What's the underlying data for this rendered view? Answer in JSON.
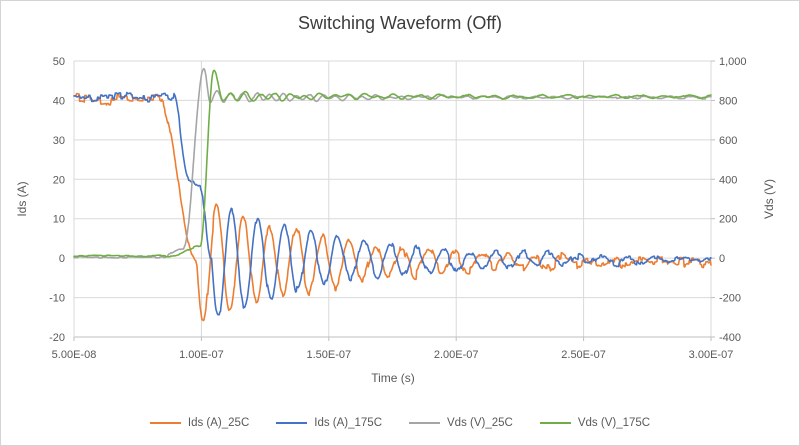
{
  "window": {
    "background": "#ffffff",
    "border_color": "#d4d4d4"
  },
  "chart_data": {
    "type": "line",
    "title": "Switching Waveform (Off)",
    "xlabel": "Time (s)",
    "ylabel_left": "Ids (A)",
    "ylabel_right": "Vds (V)",
    "grid": true,
    "legend_position": "bottom",
    "colors": {
      "grid": "#d9d9d9",
      "axis_line": "#bfbfbf",
      "tick_text": "#595959",
      "title_text": "#3c3c3c"
    },
    "x_axis": {
      "min": 5e-08,
      "max": 3e-07,
      "unit": "s",
      "tick_values": [
        5e-08,
        1e-07,
        1.5e-07,
        2e-07,
        2.5e-07,
        3e-07
      ],
      "tick_labels": [
        "5.00E-08",
        "1.00E-07",
        "1.50E-07",
        "2.00E-07",
        "2.50E-07",
        "3.00E-07"
      ]
    },
    "y_left": {
      "min": -20,
      "max": 50,
      "step": 10,
      "unit": "A",
      "tick_values": [
        50,
        40,
        30,
        20,
        10,
        0,
        -10,
        -20
      ],
      "tick_labels": [
        "50",
        "40",
        "30",
        "20",
        "10",
        "0",
        "-10",
        "-20"
      ]
    },
    "y_right": {
      "min": -400,
      "max": 1000,
      "step": 200,
      "unit": "V",
      "tick_values": [
        1000,
        800,
        600,
        400,
        200,
        0,
        -200,
        -400
      ],
      "tick_labels": [
        "1,000",
        "800",
        "600",
        "400",
        "200",
        "0",
        "-200",
        "-400"
      ]
    },
    "time_model_unit": "ns",
    "series": [
      {
        "name": "Ids (A)_25C",
        "color": "#ED7D31",
        "axis": "left",
        "unit": "A",
        "description": "Drain current at 25C: steady ~40.3 A, turn-off begins ~8.4e-8 s, rings at ~96 MHz decaying toward ~-1 A",
        "key_points": [
          [
            5e-08,
            40.3
          ],
          [
            8.35e-08,
            40.3
          ],
          [
            9.1e-08,
            20
          ],
          [
            9.8e-08,
            0
          ],
          [
            1.008e-07,
            -16
          ],
          [
            1.06e-07,
            10.5
          ],
          [
            1.6e-07,
            5
          ],
          [
            2.3e-07,
            2
          ],
          [
            3e-07,
            -1
          ]
        ],
        "model": {
          "seed": 3,
          "segments": [
            {
              "type": "flat",
              "t1": 83.5,
              "level": 40.3
            },
            {
              "type": "ease",
              "t0": 83.5,
              "t1": 98.2,
              "from": 40.3,
              "to": -0.9
            }
          ],
          "ring": {
            "t0": 98.2,
            "period": 10.4,
            "amp": 16,
            "tau": 55,
            "settle": -0.9,
            "form": "sin",
            "sign": -1
          },
          "noise": [
            {
              "amp": 0.55,
              "period": 0.8
            },
            {
              "amp": 1.1,
              "period": 2.1,
              "spiky": true
            }
          ]
        }
      },
      {
        "name": "Ids (A)_175C",
        "color": "#4472C4",
        "axis": "left",
        "unit": "A",
        "description": "Drain current at 175C: steady ~40.9 A, falls later (~8.9e-8 s) with ~19 A shoulder, rings at ~96 MHz toward ~-0.4 A",
        "key_points": [
          [
            5e-08,
            40.9
          ],
          [
            8.9e-08,
            40.9
          ],
          [
            9.5e-08,
            20
          ],
          [
            9.95e-08,
            18
          ],
          [
            1.04e-07,
            0
          ],
          [
            1.066e-07,
            -14.7
          ],
          [
            1.12e-07,
            11
          ],
          [
            1.7e-07,
            4.5
          ],
          [
            3e-07,
            -0.4
          ]
        ],
        "model": {
          "seed": 7,
          "segments": [
            {
              "type": "flat",
              "t1": 89,
              "level": 40.9
            },
            {
              "type": "ease",
              "t0": 89,
              "t1": 95,
              "from": 40.9,
              "to": 20
            },
            {
              "type": "ease",
              "t0": 95,
              "t1": 99.5,
              "from": 20,
              "to": 18
            },
            {
              "type": "ease",
              "t0": 99.5,
              "t1": 104,
              "from": 18,
              "to": -0.4
            }
          ],
          "ring": {
            "t0": 104,
            "period": 10.4,
            "amp": 15,
            "tau": 55,
            "settle": -0.4,
            "form": "sin",
            "sign": -1
          },
          "noise": [
            {
              "amp": 0.5,
              "period": 0.8
            },
            {
              "amp": 0.9,
              "period": 2.3,
              "spiky": true
            }
          ]
        }
      },
      {
        "name": "Vds (V)_25C",
        "color": "#A5A5A5",
        "axis": "right",
        "unit": "V",
        "description": "Drain-source voltage at 25C: ~4 V on-state, rises ~9.3e-8 s, overshoots to ~958 V at ~1.01e-7 s, settles ~816 V with ripple",
        "key_points": [
          [
            5e-08,
            4
          ],
          [
            8.4e-08,
            4
          ],
          [
            9.3e-08,
            50
          ],
          [
            1.01e-07,
            958
          ],
          [
            1.035e-07,
            790
          ],
          [
            1.06e-07,
            842
          ],
          [
            1.5e-07,
            820
          ],
          [
            3e-07,
            818
          ]
        ],
        "model": {
          "seed": 11,
          "segments": [
            {
              "type": "flat",
              "t1": 84,
              "level": 4
            },
            {
              "type": "ease",
              "t0": 84,
              "t1": 93,
              "from": 4,
              "to": 50
            },
            {
              "type": "ease",
              "t0": 93,
              "t1": 101,
              "from": 50,
              "to": 958
            },
            {
              "type": "ease",
              "t0": 101,
              "t1": 103.5,
              "from": 958,
              "to": 790
            }
          ],
          "ring": {
            "t0": 103.5,
            "period": 5.2,
            "amp": 26,
            "tau": 55,
            "settle": 816,
            "form": "cos",
            "sign": -1
          },
          "wobble": {
            "from": 103.5,
            "amp": 5,
            "period": 8.9,
            "phase": 0
          },
          "noise": [
            {
              "amp": 4,
              "period": 1.6
            }
          ]
        }
      },
      {
        "name": "Vds (V)_175C",
        "color": "#70AD47",
        "axis": "right",
        "unit": "V",
        "description": "Drain-source voltage at 175C: ~11 V on-state, rises later (~1.0e-7 s), peaks ~949 V at ~1.05e-7 s, settles ~820 V with ripple",
        "key_points": [
          [
            5e-08,
            11
          ],
          [
            8.8e-08,
            11
          ],
          [
            1e-07,
            60
          ],
          [
            1.049e-07,
            949
          ],
          [
            1.086e-07,
            800
          ],
          [
            1.12e-07,
            840
          ],
          [
            1.6e-07,
            822
          ],
          [
            3e-07,
            820
          ]
        ],
        "model": {
          "seed": 19,
          "segments": [
            {
              "type": "flat",
              "t1": 88,
              "level": 11
            },
            {
              "type": "ease",
              "t0": 88,
              "t1": 99.5,
              "from": 11,
              "to": 60
            },
            {
              "type": "ease",
              "t0": 99.5,
              "t1": 104.9,
              "from": 60,
              "to": 949
            },
            {
              "type": "ease",
              "t0": 104.9,
              "t1": 108.6,
              "from": 949,
              "to": 800
            }
          ],
          "ring": {
            "t0": 108.6,
            "period": 5.8,
            "amp": 20,
            "tau": 60,
            "settle": 820,
            "form": "cos",
            "sign": -1
          },
          "wobble": {
            "from": 108.6,
            "amp": 6,
            "period": 9.7,
            "phase": 2.5
          },
          "noise": [
            {
              "amp": 4,
              "period": 1.8
            }
          ]
        }
      }
    ]
  }
}
